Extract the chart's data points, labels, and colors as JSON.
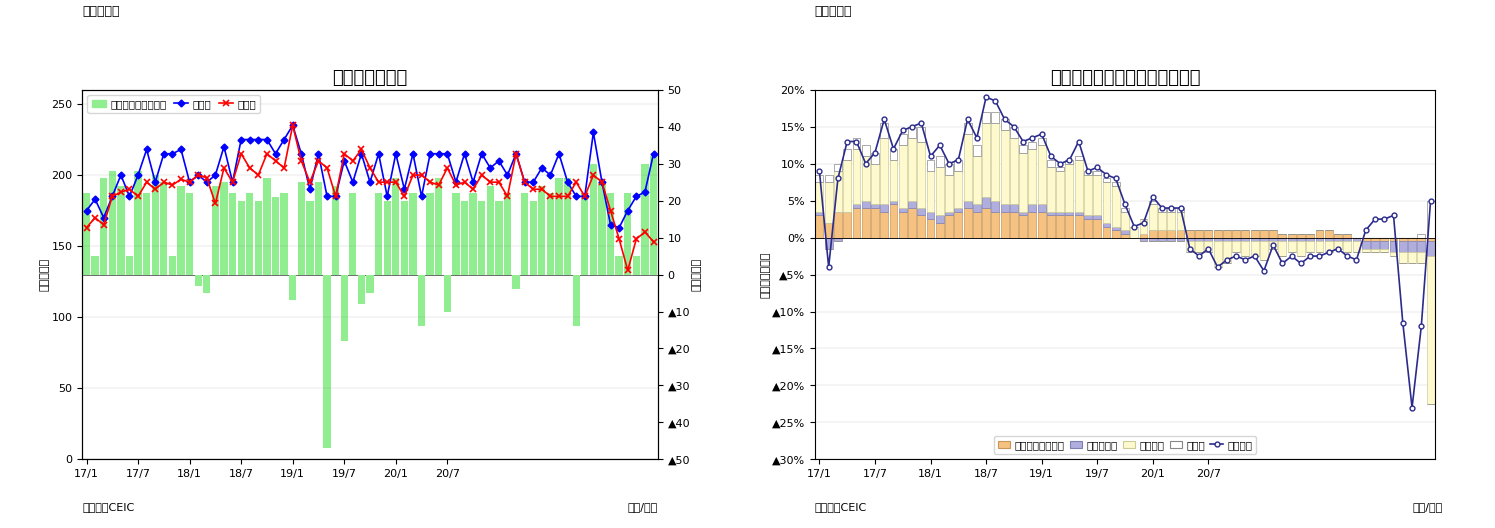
{
  "fig5_title": "タイの貿易収支",
  "fig5_label_left": "（億ドル）",
  "fig5_label_right": "（億ドル）",
  "fig5_xlabel": "（年/月）",
  "fig5_source": "（資料）CEIC",
  "fig5_header": "（図表５）",
  "fig5_legend": [
    "貿易収支（右目盛）",
    "輸出額",
    "輸入額"
  ],
  "fig5_xticks": [
    "17/1",
    "17/7",
    "18/1",
    "18/7",
    "19/1",
    "19/7",
    "20/1",
    "20/7"
  ],
  "fig5_yticks_right_labels": [
    "50",
    "40",
    "30",
    "20",
    "10",
    "0",
    "▲10",
    "▲20",
    "▲30",
    "▲40",
    "▲50"
  ],
  "fig5_yticks_right_vals": [
    50,
    40,
    30,
    20,
    10,
    0,
    -10,
    -20,
    -30,
    -40,
    -50
  ],
  "trade_balance": [
    22,
    5,
    26,
    28,
    24,
    5,
    28,
    22,
    27,
    25,
    5,
    24,
    22,
    -3,
    -5,
    24,
    25,
    22,
    20,
    22,
    20,
    26,
    21,
    22,
    -7,
    25,
    20,
    25,
    -47,
    24,
    -18,
    22,
    -8,
    -5,
    22,
    20,
    26,
    20,
    22,
    -14,
    22,
    26,
    -10,
    22,
    20,
    22,
    20,
    24,
    20,
    22,
    -4,
    22,
    20,
    24,
    22,
    26,
    26,
    -14,
    22,
    30,
    25,
    22,
    5,
    22,
    5,
    30,
    32
  ],
  "exports": [
    175,
    183,
    170,
    185,
    200,
    185,
    200,
    218,
    195,
    215,
    215,
    218,
    195,
    200,
    195,
    200,
    220,
    195,
    225,
    225,
    225,
    225,
    215,
    225,
    235,
    215,
    190,
    215,
    185,
    185,
    210,
    195,
    215,
    195,
    215,
    185,
    215,
    190,
    215,
    185,
    215,
    215,
    215,
    195,
    215,
    195,
    215,
    205,
    210,
    200,
    215,
    195,
    195,
    205,
    200,
    215,
    195,
    185,
    185,
    230,
    195,
    165,
    163,
    175,
    185,
    188,
    215
  ],
  "imports": [
    163,
    170,
    165,
    185,
    188,
    190,
    185,
    195,
    190,
    195,
    193,
    197,
    195,
    200,
    198,
    180,
    205,
    195,
    215,
    205,
    200,
    215,
    210,
    205,
    235,
    210,
    195,
    210,
    205,
    185,
    215,
    210,
    218,
    205,
    195,
    195,
    195,
    185,
    200,
    200,
    195,
    193,
    205,
    193,
    195,
    190,
    200,
    195,
    195,
    185,
    215,
    195,
    190,
    190,
    185,
    185,
    185,
    195,
    185,
    200,
    195,
    175,
    155,
    133,
    155,
    160,
    153
  ],
  "fig6_title": "タイ　輸出の伸び率（品目別）",
  "fig6_label_left": "（前年同月比）",
  "fig6_xlabel": "（年/月）",
  "fig6_source": "（資料）CEIC",
  "fig6_header": "（図表６）",
  "fig6_legend": [
    "農産物・同加工品",
    "鉱物・燃料",
    "工業製品",
    "その他",
    "輸出全体"
  ],
  "fig6_xticks": [
    "17/1",
    "17/7",
    "18/1",
    "18/7",
    "19/1",
    "19/7",
    "20/1",
    "20/7"
  ],
  "fig6_yticks_labels": [
    "20%",
    "15%",
    "10%",
    "5%",
    "0%",
    "▲5%",
    "▲10%",
    "▲15%",
    "▲20%",
    "▲25%",
    "▲30%"
  ],
  "fig6_yticks_vals": [
    20,
    15,
    10,
    5,
    0,
    -5,
    -10,
    -15,
    -20,
    -25,
    -30
  ],
  "agri": [
    3.0,
    2.0,
    3.5,
    3.5,
    4.0,
    4.0,
    4.0,
    3.5,
    4.5,
    3.5,
    4.0,
    3.0,
    2.5,
    2.0,
    3.0,
    3.5,
    4.0,
    3.5,
    4.0,
    3.5,
    3.5,
    3.5,
    3.0,
    3.5,
    3.5,
    3.0,
    3.0,
    3.0,
    3.0,
    2.5,
    2.5,
    1.5,
    1.0,
    0.5,
    0.0,
    0.5,
    1.0,
    1.0,
    1.0,
    1.0,
    1.0,
    1.0,
    1.0,
    1.0,
    1.0,
    1.0,
    1.0,
    1.0,
    1.0,
    1.0,
    0.5,
    0.5,
    0.5,
    0.5,
    1.0,
    1.0,
    0.5,
    0.5,
    0.0,
    -0.5,
    -0.5,
    -0.5,
    -0.5,
    -0.5,
    -0.5,
    -0.5,
    -0.5
  ],
  "mineral": [
    0.5,
    -1.5,
    -0.5,
    0.0,
    0.5,
    1.0,
    0.5,
    1.0,
    0.5,
    0.5,
    1.0,
    1.0,
    1.0,
    1.0,
    0.5,
    0.5,
    1.0,
    1.0,
    1.5,
    1.5,
    1.0,
    1.0,
    0.5,
    1.0,
    1.0,
    0.5,
    0.5,
    0.5,
    0.5,
    0.5,
    0.5,
    0.5,
    0.5,
    0.5,
    0.0,
    -0.5,
    -0.5,
    -0.5,
    -0.5,
    -0.5,
    -0.5,
    -0.5,
    -0.5,
    -0.5,
    -0.5,
    -0.5,
    -0.5,
    -0.5,
    -0.5,
    -0.5,
    -0.5,
    -0.5,
    -0.5,
    -0.5,
    -0.5,
    -0.5,
    -0.5,
    -0.5,
    -0.5,
    -1.0,
    -1.0,
    -1.0,
    -1.5,
    -1.5,
    -1.5,
    -1.5,
    -2.0
  ],
  "industrial": [
    4.0,
    5.5,
    5.5,
    7.0,
    7.5,
    6.0,
    5.5,
    9.0,
    5.5,
    8.5,
    8.5,
    9.0,
    5.5,
    6.5,
    5.0,
    5.0,
    9.0,
    6.5,
    10.0,
    10.5,
    10.0,
    9.0,
    8.0,
    7.5,
    8.0,
    6.0,
    5.5,
    6.5,
    7.0,
    5.5,
    5.5,
    5.5,
    5.5,
    2.5,
    1.5,
    2.0,
    3.5,
    2.5,
    2.5,
    2.5,
    -1.5,
    -1.5,
    -1.5,
    -3.5,
    -3.0,
    -1.5,
    -2.0,
    -2.0,
    -2.5,
    -1.0,
    -2.0,
    -1.5,
    -2.0,
    -1.5,
    -1.5,
    -1.5,
    -1.0,
    -1.5,
    -1.5,
    -0.5,
    -0.5,
    -0.5,
    -0.5,
    -1.5,
    -1.5,
    -1.5,
    -20.0
  ],
  "other": [
    1.0,
    1.0,
    1.0,
    1.5,
    1.5,
    1.5,
    1.5,
    2.0,
    1.5,
    1.5,
    1.5,
    2.0,
    1.5,
    1.5,
    1.5,
    1.5,
    1.5,
    1.5,
    1.5,
    1.5,
    1.5,
    1.5,
    1.0,
    1.0,
    1.0,
    1.0,
    0.5,
    0.5,
    0.5,
    0.5,
    0.5,
    0.5,
    0.5,
    0.5,
    0.0,
    0.0,
    0.5,
    0.5,
    0.5,
    0.5,
    0.0,
    0.0,
    0.0,
    0.0,
    0.0,
    0.0,
    0.0,
    0.0,
    0.0,
    0.0,
    0.0,
    0.0,
    0.0,
    0.0,
    0.0,
    0.0,
    0.0,
    0.0,
    0.0,
    0.0,
    0.0,
    0.0,
    0.0,
    0.0,
    0.0,
    0.5,
    5.0
  ],
  "export_total": [
    9.0,
    -4.0,
    8.0,
    13.0,
    13.0,
    10.0,
    11.5,
    16.0,
    12.0,
    14.5,
    15.0,
    15.5,
    11.0,
    12.5,
    10.0,
    10.5,
    16.0,
    13.5,
    19.0,
    18.5,
    16.0,
    15.0,
    13.0,
    13.5,
    14.0,
    11.0,
    10.0,
    10.5,
    13.0,
    9.0,
    9.5,
    8.5,
    8.0,
    4.5,
    1.5,
    2.0,
    5.5,
    4.0,
    4.0,
    4.0,
    -1.5,
    -2.5,
    -1.5,
    -4.0,
    -3.0,
    -2.5,
    -3.0,
    -2.5,
    -4.5,
    -1.0,
    -3.5,
    -2.5,
    -3.5,
    -2.5,
    -2.5,
    -2.0,
    -1.5,
    -2.5,
    -3.0,
    1.0,
    2.5,
    2.5,
    3.0,
    -11.5,
    -23.0,
    -12.0,
    5.0
  ]
}
